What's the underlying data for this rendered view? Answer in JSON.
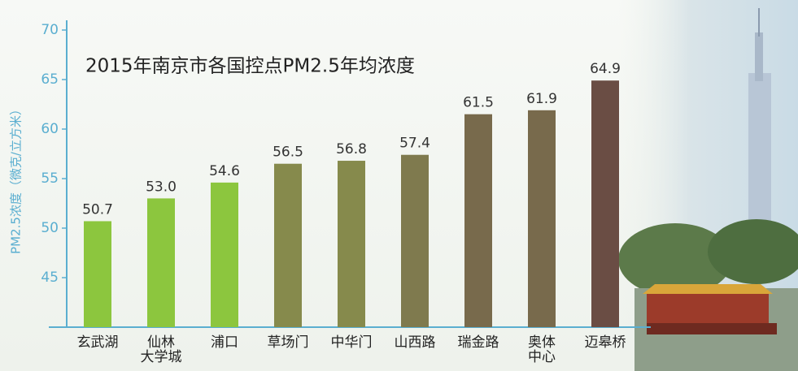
{
  "chart_data": {
    "type": "bar",
    "title": "2015年南京市各国控点PM2.5年均浓度",
    "y_label": "PM2.5浓度（微克/立方米）",
    "categories": [
      "玄武湖",
      "仙林\n大学城",
      "浦口",
      "草场门",
      "中华门",
      "山西路",
      "瑞金路",
      "奥体\n中心",
      "迈皋桥"
    ],
    "values": [
      50.7,
      53.0,
      54.6,
      56.5,
      56.8,
      57.4,
      61.5,
      61.9,
      64.9
    ],
    "value_labels": [
      "50.7",
      "53.0",
      "54.6",
      "56.5",
      "56.8",
      "57.4",
      "61.5",
      "61.9",
      "64.9"
    ],
    "colors": [
      "#8cc63e",
      "#8cc63e",
      "#8cc63e",
      "#868a4c",
      "#868a4c",
      "#7f7a4e",
      "#786a4c",
      "#786a4c",
      "#6a4d44"
    ],
    "ylim": [
      40,
      70
    ],
    "yticks": [
      45,
      50,
      55,
      60,
      65,
      70
    ],
    "grid": false
  }
}
